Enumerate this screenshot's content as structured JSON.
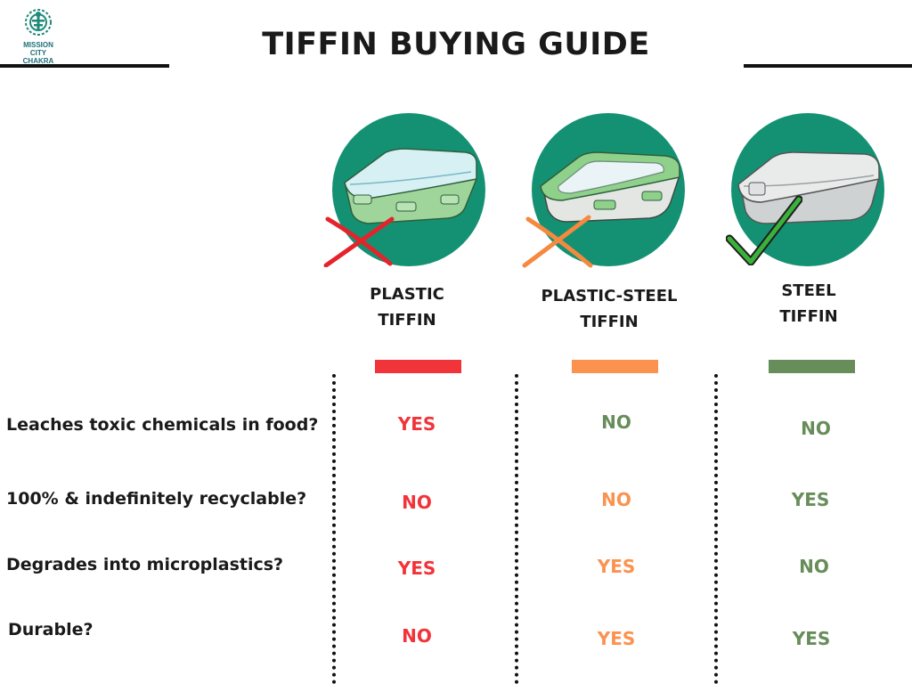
{
  "logo": {
    "line1": "MISSION",
    "line2": "CITY CHAKRA"
  },
  "title": "TIFFIN BUYING GUIDE",
  "colors": {
    "circle": "#149173",
    "red": "#f1343a",
    "orange": "#fb9250",
    "green": "#678d5a"
  },
  "products": [
    {
      "line1": "PLASTIC",
      "line2": "TIFFIN",
      "mark": "cross-red-icon",
      "color": "#f1343a"
    },
    {
      "line1": "PLASTIC-STEEL",
      "line2": "TIFFIN",
      "mark": "cross-orange-icon",
      "color": "#fb9250"
    },
    {
      "line1": "STEEL",
      "line2": "TIFFIN",
      "mark": "check-green-icon",
      "color": "#678d5a"
    }
  ],
  "rows": [
    {
      "question": "Leaches toxic chemicals in food?",
      "answers": [
        "YES",
        "NO",
        "NO"
      ]
    },
    {
      "question": "100% & indefinitely recyclable?",
      "answers": [
        "NO",
        "NO",
        "YES"
      ]
    },
    {
      "question": "Degrades into microplastics?",
      "answers": [
        "YES",
        "YES",
        "NO"
      ]
    },
    {
      "question": "Durable?",
      "answers": [
        "NO",
        "YES",
        "YES"
      ]
    }
  ]
}
